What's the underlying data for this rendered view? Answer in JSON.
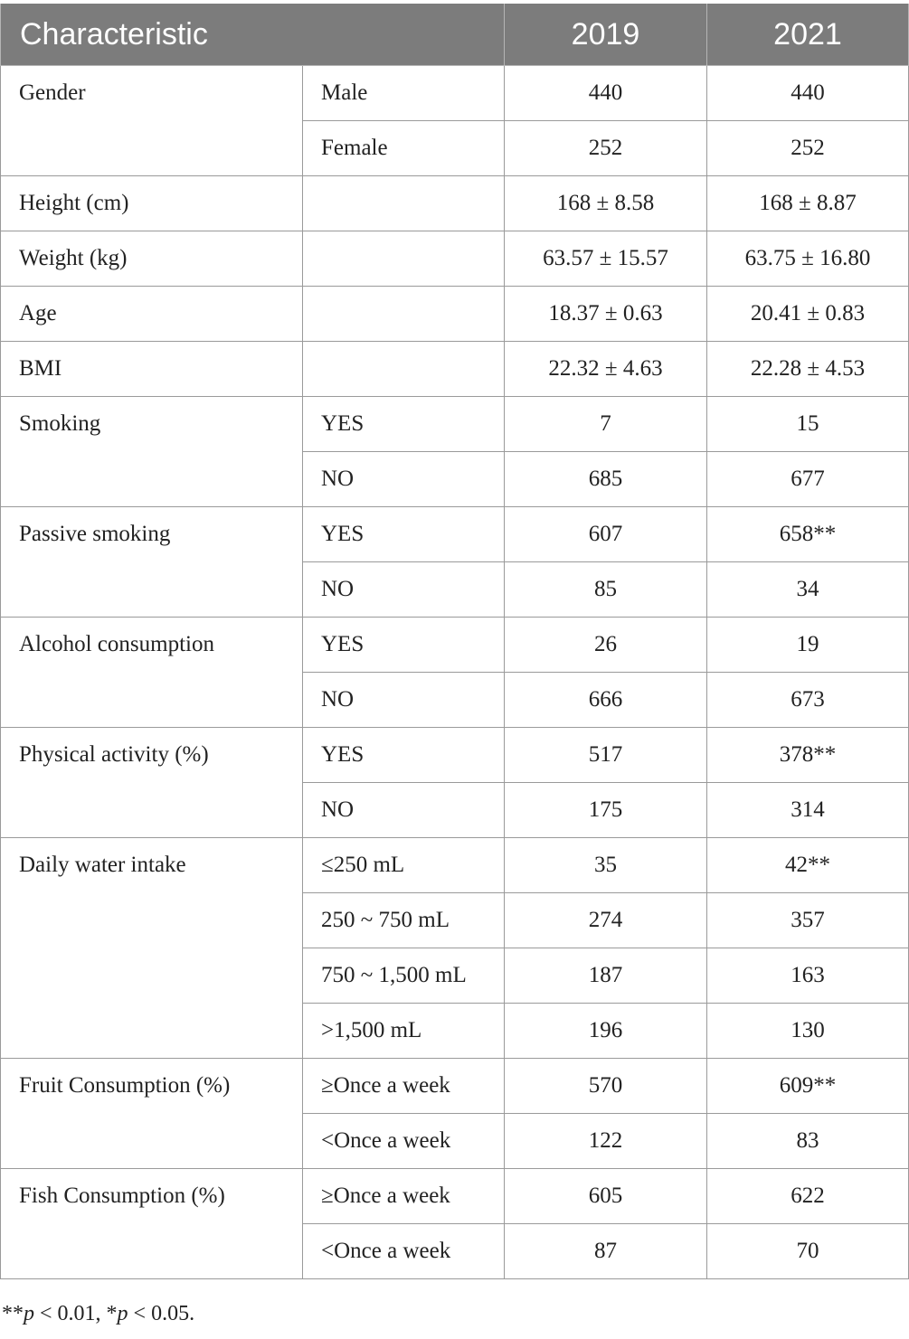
{
  "table": {
    "headers": [
      "Characteristic",
      "",
      "2019",
      "2021"
    ],
    "rows": [
      {
        "characteristic": "Gender",
        "subs": [
          {
            "label": "Male",
            "y2019": "440",
            "y2021": "440"
          },
          {
            "label": "Female",
            "y2019": "252",
            "y2021": "252"
          }
        ]
      },
      {
        "characteristic": "Height (cm)",
        "subs": [
          {
            "label": "",
            "y2019": "168 ± 8.58",
            "y2021": "168 ± 8.87"
          }
        ]
      },
      {
        "characteristic": "Weight (kg)",
        "subs": [
          {
            "label": "",
            "y2019": "63.57 ± 15.57",
            "y2021": "63.75 ± 16.80"
          }
        ]
      },
      {
        "characteristic": "Age",
        "subs": [
          {
            "label": "",
            "y2019": "18.37 ± 0.63",
            "y2021": "20.41 ± 0.83"
          }
        ]
      },
      {
        "characteristic": "BMI",
        "subs": [
          {
            "label": "",
            "y2019": "22.32 ± 4.63",
            "y2021": "22.28 ± 4.53"
          }
        ]
      },
      {
        "characteristic": "Smoking",
        "subs": [
          {
            "label": "YES",
            "y2019": "7",
            "y2021": "15"
          },
          {
            "label": "NO",
            "y2019": "685",
            "y2021": "677"
          }
        ]
      },
      {
        "characteristic": "Passive smoking",
        "subs": [
          {
            "label": "YES",
            "y2019": "607",
            "y2021": "658**"
          },
          {
            "label": "NO",
            "y2019": "85",
            "y2021": "34"
          }
        ]
      },
      {
        "characteristic": "Alcohol consumption",
        "subs": [
          {
            "label": "YES",
            "y2019": "26",
            "y2021": "19"
          },
          {
            "label": "NO",
            "y2019": "666",
            "y2021": "673"
          }
        ]
      },
      {
        "characteristic": "Physical activity (%)",
        "subs": [
          {
            "label": "YES",
            "y2019": "517",
            "y2021": "378**"
          },
          {
            "label": "NO",
            "y2019": "175",
            "y2021": "314"
          }
        ]
      },
      {
        "characteristic": "Daily water intake",
        "subs": [
          {
            "label": "≤250 mL",
            "y2019": "35",
            "y2021": "42**"
          },
          {
            "label": "250 ~ 750 mL",
            "y2019": "274",
            "y2021": "357"
          },
          {
            "label": "750 ~ 1,500 mL",
            "y2019": "187",
            "y2021": "163"
          },
          {
            "label": ">1,500 mL",
            "y2019": "196",
            "y2021": "130"
          }
        ]
      },
      {
        "characteristic": "Fruit Consumption (%)",
        "subs": [
          {
            "label": "≥Once a week",
            "y2019": "570",
            "y2021": "609**"
          },
          {
            "label": "<Once a week",
            "y2019": "122",
            "y2021": "83"
          }
        ]
      },
      {
        "characteristic": "Fish Consumption (%)",
        "subs": [
          {
            "label": "≥Once a week",
            "y2019": "605",
            "y2021": "622"
          },
          {
            "label": "<Once a week",
            "y2019": "87",
            "y2021": "70"
          }
        ]
      }
    ]
  },
  "footnote": "**p < 0.01, *p < 0.05."
}
